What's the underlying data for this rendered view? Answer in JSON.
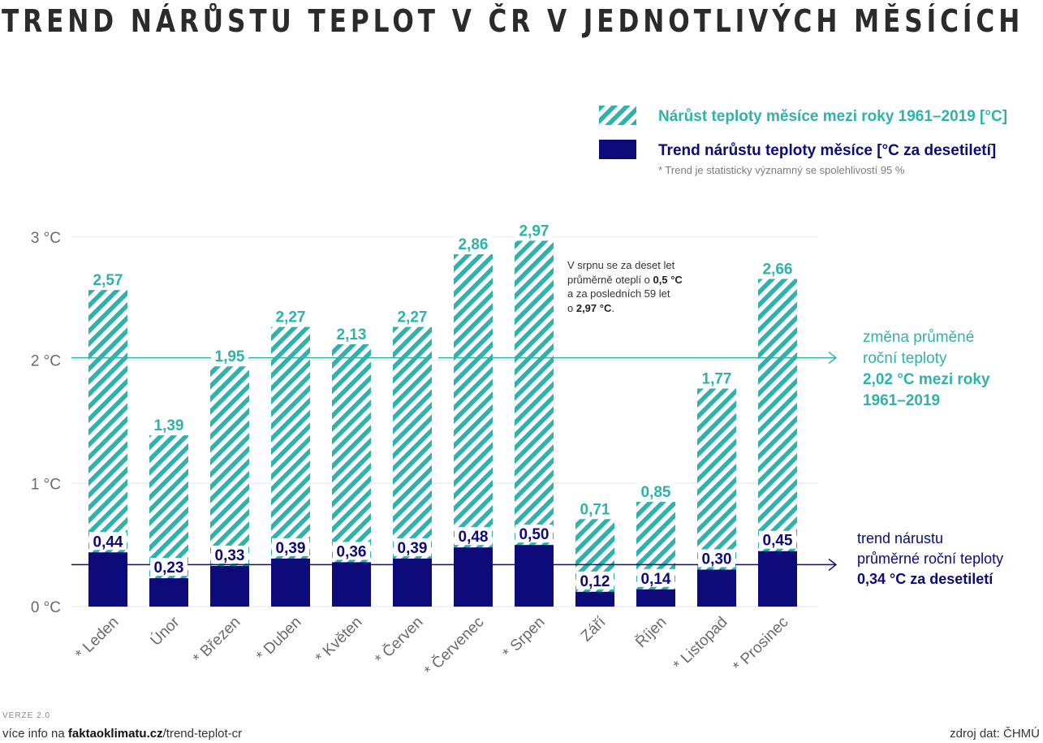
{
  "title": "TREND NÁRŮSTU TEPLOT V ČR V JEDNOTLIVÝCH MĚSÍCÍCH",
  "colors": {
    "teal": "#2fb2ab",
    "navy": "#0d0a7a",
    "grid": "#e6e6e6",
    "axis_text": "#6b6b6b"
  },
  "legend": {
    "hatched_label": "Nárůst teploty měsíce mezi roky 1961–2019 [°C]",
    "solid_label": "Trend nárůstu teploty měsíce [°C za desetiletí]",
    "note": "* Trend je statisticky významný se spolehlivostí 95 %"
  },
  "annotations": {
    "srpen": {
      "line1": "V srpnu se za deset let",
      "line2_pre": "průměrně oteplí o ",
      "line2_bold": "0,5 °C",
      "line3": "a za posledních 59 let",
      "line4_pre": "o ",
      "line4_bold": "2,97 °C",
      "line4_post": "."
    },
    "year_change": {
      "line1": "změna průměné",
      "line2": "roční teploty",
      "line3": "2,02 °C mezi roky",
      "line4": "1961–2019"
    },
    "year_trend": {
      "line1": "trend nárustu",
      "line2": "průměrné roční teploty",
      "line3": "0,34 °C za desetiletí"
    }
  },
  "footer": {
    "version": "VERZE 2.0",
    "info_pre": "více info na ",
    "info_bold": "faktaoklimatu.cz",
    "info_post": "/trend-teplot-cr",
    "source": "zdroj dat: ČHMÚ"
  },
  "chart_data": {
    "type": "bar",
    "title": "TREND NÁRŮSTU TEPLOT V ČR V JEDNOTLIVÝCH MĚSÍCÍCH",
    "ylim": [
      0,
      3
    ],
    "yticks": [
      0,
      1,
      2,
      3
    ],
    "ytick_labels": [
      "0 °C",
      "1 °C",
      "2 °C",
      "3 °C"
    ],
    "grid": true,
    "legend_position": "top-right",
    "categories": [
      "* Leden",
      "Únor",
      "* Březen",
      "* Duben",
      "* Květen",
      "* Červen",
      "* Červenec",
      "* Srpen",
      "Září",
      "Říjen",
      "* Listopad",
      "* Prosinec"
    ],
    "series": [
      {
        "name": "Nárůst teploty měsíce mezi roky 1961–2019 [°C]",
        "values": [
          2.57,
          1.39,
          1.95,
          2.27,
          2.13,
          2.27,
          2.86,
          2.97,
          0.71,
          0.85,
          1.77,
          2.66
        ],
        "labels": [
          "2,57",
          "1,39",
          "1,95",
          "2,27",
          "2,13",
          "2,27",
          "2,86",
          "2,97",
          "0,71",
          "0,85",
          "1,77",
          "2,66"
        ]
      },
      {
        "name": "Trend nárůstu teploty měsíce [°C za desetiletí]",
        "values": [
          0.44,
          0.23,
          0.33,
          0.39,
          0.36,
          0.39,
          0.48,
          0.5,
          0.12,
          0.14,
          0.3,
          0.45
        ],
        "labels": [
          "0,44",
          "0,23",
          "0,33",
          "0,39",
          "0,36",
          "0,39",
          "0,48",
          "0,50",
          "0,12",
          "0,14",
          "0,30",
          "0,45"
        ]
      }
    ],
    "reference_lines": [
      {
        "value": 2.02,
        "label": "2,02 °C mezi roky 1961–2019"
      },
      {
        "value": 0.34,
        "label": "0,34 °C za desetiletí"
      }
    ]
  }
}
